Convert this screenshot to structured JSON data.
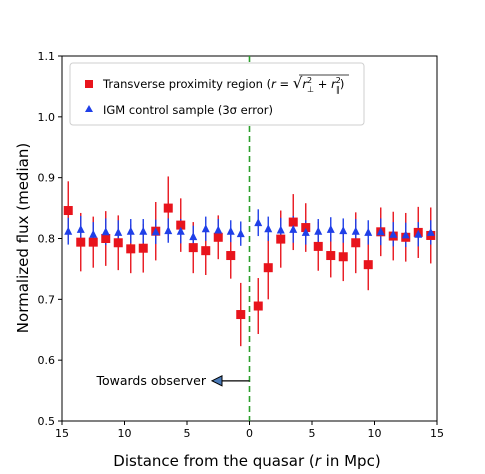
{
  "chart_data": {
    "type": "scatter",
    "xlabel": "Distance from the quasar (r in Mpc)",
    "ylabel": "Normalized flux (median)",
    "xlim": [
      -15,
      15
    ],
    "ylim": [
      0.5,
      1.1
    ],
    "x_tick_values": [
      -15,
      -10,
      -5,
      0,
      5,
      10,
      15
    ],
    "x_tick_labels": [
      "15",
      "10",
      "5",
      "0",
      "5",
      "10",
      "15"
    ],
    "y_tick_values": [
      0.5,
      0.6,
      0.7,
      0.8,
      0.9,
      1.0,
      1.1
    ],
    "y_tick_labels": [
      "0.5",
      "0.6",
      "0.7",
      "0.8",
      "0.9",
      "1.0",
      "1.1"
    ],
    "grid": false,
    "legend_position": "top-left",
    "vline": {
      "x": 0,
      "color": "#2ca02c",
      "style": "dashed"
    },
    "annotation": {
      "text": "Towards observer",
      "arrow_from_x": 0,
      "arrow_to_x": -3,
      "y": 0.566
    },
    "series": [
      {
        "name": "Transverse proximity region (r = √(r⊥² + r∥²))",
        "marker": "square",
        "color": "#e8141c",
        "x": [
          -14.5,
          -13.5,
          -12.5,
          -11.5,
          -10.5,
          -9.5,
          -8.5,
          -7.5,
          -6.5,
          -5.5,
          -4.5,
          -3.5,
          -2.5,
          -1.5,
          -0.7,
          0.7,
          1.5,
          2.5,
          3.5,
          4.5,
          5.5,
          6.5,
          7.5,
          8.5,
          9.5,
          10.5,
          11.5,
          12.5,
          13.5,
          14.5
        ],
        "y": [
          0.846,
          0.794,
          0.794,
          0.8,
          0.793,
          0.783,
          0.784,
          0.812,
          0.85,
          0.822,
          0.785,
          0.78,
          0.802,
          0.772,
          0.675,
          0.689,
          0.752,
          0.799,
          0.827,
          0.818,
          0.787,
          0.772,
          0.77,
          0.793,
          0.757,
          0.811,
          0.804,
          0.802,
          0.81,
          0.805
        ],
        "err": [
          0.048,
          0.048,
          0.042,
          0.045,
          0.045,
          0.04,
          0.04,
          0.048,
          0.052,
          0.044,
          0.042,
          0.04,
          0.036,
          0.038,
          0.052,
          0.046,
          0.052,
          0.047,
          0.046,
          0.04,
          0.04,
          0.036,
          0.04,
          0.05,
          0.042,
          0.04,
          0.04,
          0.04,
          0.042,
          0.046
        ]
      },
      {
        "name": "IGM control sample (3σ error)",
        "marker": "triangle",
        "color": "#1f3fe8",
        "x": [
          -14.5,
          -13.5,
          -12.5,
          -11.5,
          -10.5,
          -9.5,
          -8.5,
          -7.5,
          -6.5,
          -5.5,
          -4.5,
          -3.5,
          -2.5,
          -1.5,
          -0.7,
          0.7,
          1.5,
          2.5,
          3.5,
          4.5,
          5.5,
          6.5,
          7.5,
          8.5,
          9.5,
          10.5,
          11.5,
          12.5,
          13.5,
          14.5
        ],
        "y": [
          0.812,
          0.815,
          0.807,
          0.811,
          0.81,
          0.812,
          0.812,
          0.811,
          0.813,
          0.812,
          0.803,
          0.816,
          0.814,
          0.812,
          0.808,
          0.826,
          0.816,
          0.814,
          0.815,
          0.81,
          0.812,
          0.815,
          0.813,
          0.812,
          0.81,
          0.811,
          0.807,
          0.806,
          0.807,
          0.81
        ],
        "err": [
          0.022,
          0.022,
          0.02,
          0.022,
          0.02,
          0.02,
          0.02,
          0.02,
          0.02,
          0.02,
          0.018,
          0.02,
          0.018,
          0.018,
          0.02,
          0.022,
          0.02,
          0.02,
          0.022,
          0.02,
          0.02,
          0.02,
          0.02,
          0.02,
          0.02,
          0.022,
          0.02,
          0.02,
          0.02,
          0.02
        ]
      }
    ]
  },
  "legend": {
    "item1_prefix": "Transverse proximity region (",
    "item1_formula_r": "r",
    "item1_formula_eq": " = ",
    "item1_formula_inner_r": "r",
    "item1_formula_plus": " + ",
    "item1_suffix": ")",
    "item2_label": "IGM control sample (3σ error)"
  },
  "xlabel_parts": {
    "before": "Distance from the quasar (",
    "italic": "r",
    "after": "  in Mpc)"
  }
}
